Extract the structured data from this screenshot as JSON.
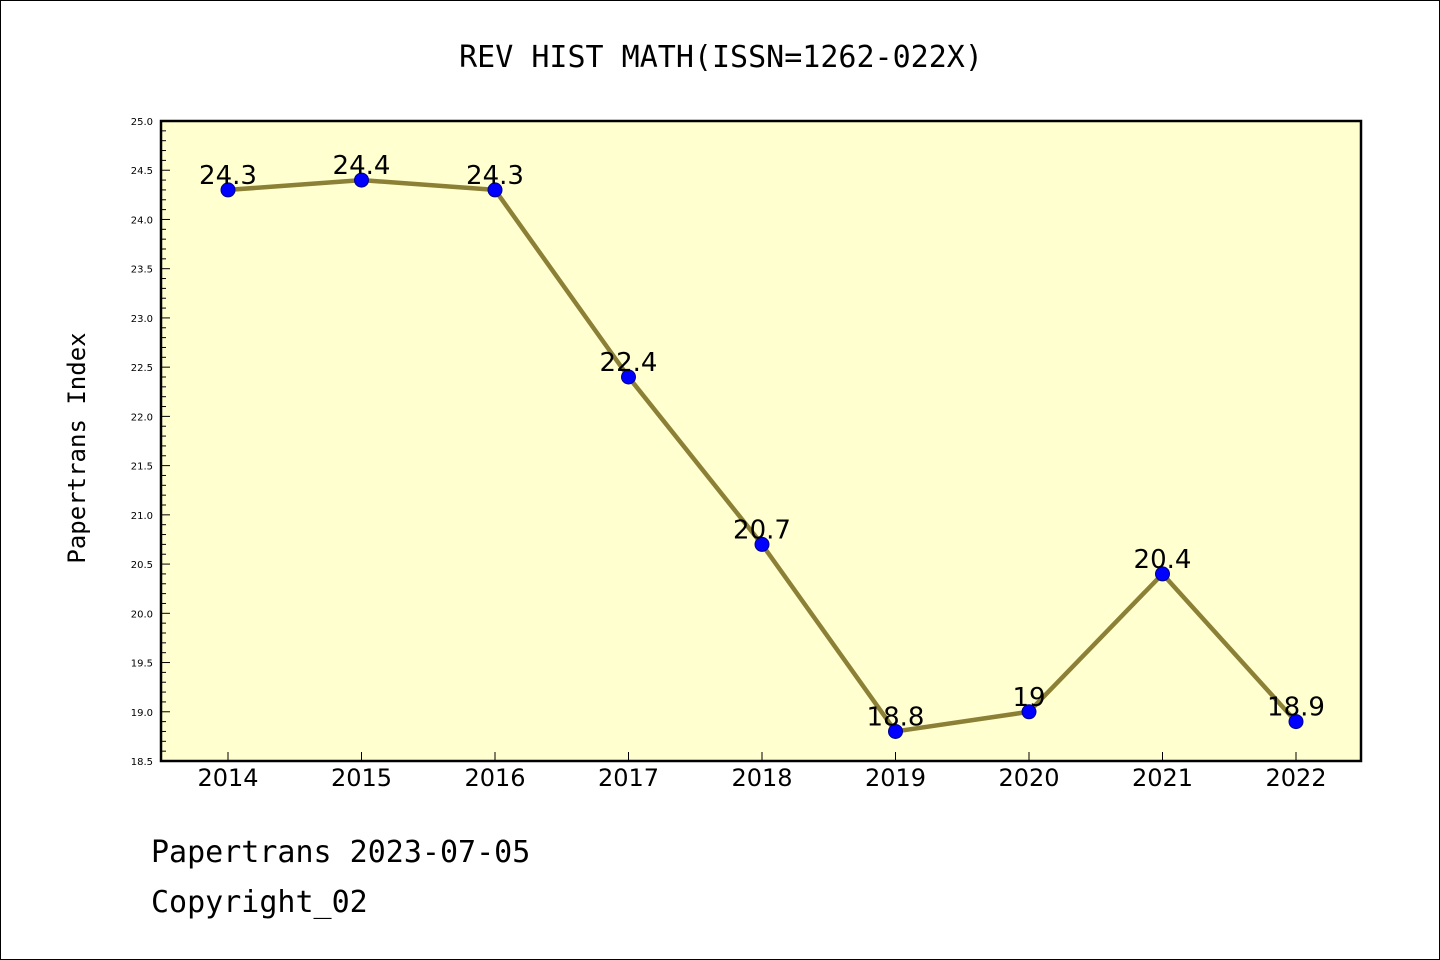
{
  "chart_data": {
    "type": "line",
    "title": "REV HIST MATH(ISSN=1262-022X)",
    "ylabel": "Papertrans Index",
    "xlabel": "",
    "categories": [
      "2014",
      "2015",
      "2016",
      "2017",
      "2018",
      "2019",
      "2020",
      "2021",
      "2022"
    ],
    "values": [
      24.3,
      24.4,
      24.3,
      22.4,
      20.7,
      18.8,
      19.0,
      20.4,
      18.9
    ],
    "data_labels": [
      "24.3",
      "24.4",
      "24.3",
      "22.4",
      "20.7",
      "18.8",
      "19",
      "20.4",
      "18.9"
    ],
    "ylim": [
      18.5,
      25.0
    ],
    "yticks": [
      "18.5",
      "19.0",
      "19.5",
      "20.0",
      "20.5",
      "21.0",
      "21.5",
      "22.0",
      "22.5",
      "23.0",
      "23.5",
      "24.0",
      "24.5",
      "25.0"
    ],
    "grid": false,
    "legend": "none",
    "colors": {
      "plot_background": "#ffffd0",
      "line": "#8b8035",
      "marker": "#0000ff",
      "marker_edge": "#00008b"
    }
  },
  "footer": {
    "line1": "Papertrans 2023-07-05",
    "line2": "Copyright_02"
  }
}
